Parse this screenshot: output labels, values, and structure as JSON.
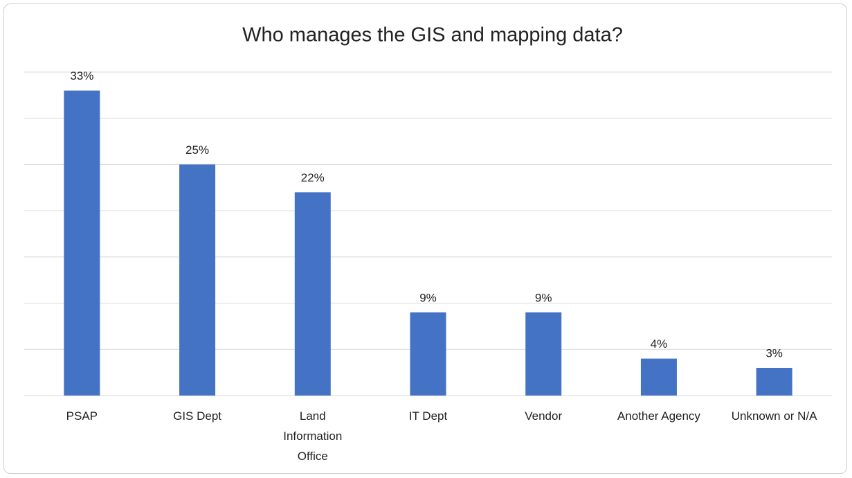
{
  "chart_data": {
    "type": "bar",
    "title": "Who manages the GIS and mapping data?",
    "categories": [
      "PSAP",
      "GIS Dept",
      "Land Information Office",
      "IT Dept",
      "Vendor",
      "Another Agency",
      "Unknown or N/A"
    ],
    "values": [
      33,
      25,
      22,
      9,
      9,
      4,
      3
    ],
    "value_labels": [
      "33%",
      "25%",
      "22%",
      "9%",
      "9%",
      "4%",
      "3%"
    ],
    "color": "#4472c4",
    "ylim": [
      0,
      35
    ],
    "yticks": [
      0,
      5,
      10,
      15,
      20,
      25,
      30,
      35
    ],
    "grid": true
  }
}
